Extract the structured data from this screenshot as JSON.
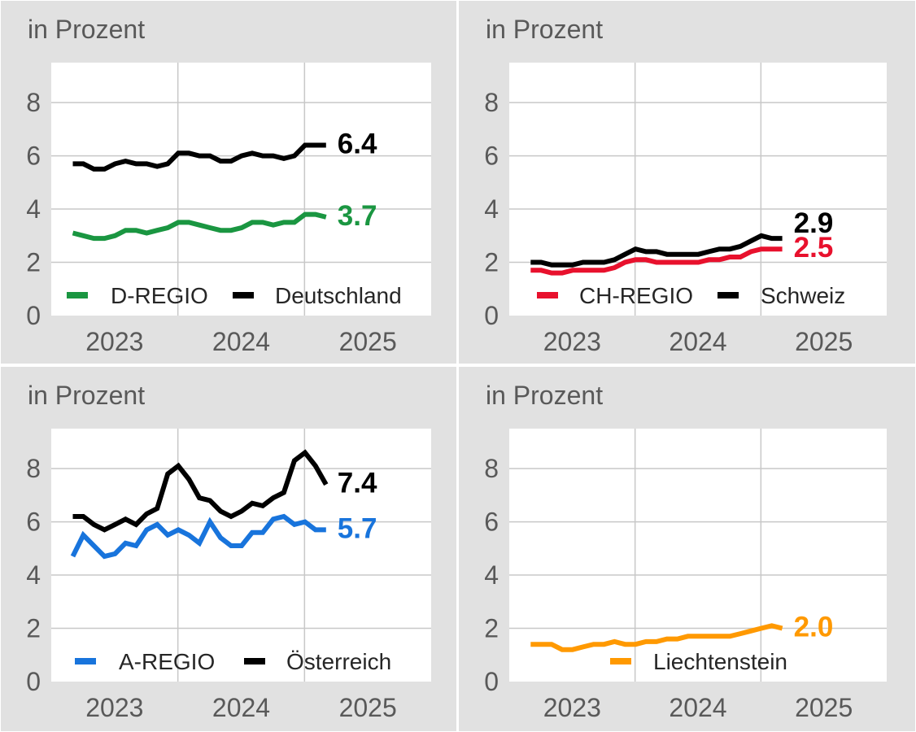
{
  "chart_data": [
    {
      "type": "line",
      "unit_label": "in Prozent",
      "ylim": [
        0,
        9.5
      ],
      "yticks": [
        "0",
        "2",
        "4",
        "6",
        "8"
      ],
      "xticks": [
        "2023",
        "2024",
        "2025"
      ],
      "grid": true,
      "legend_position": "bottom",
      "series": [
        {
          "name": "D-REGIO",
          "color": "#1a9641",
          "end_label": "3.7",
          "values": [
            3.1,
            3.0,
            2.9,
            2.9,
            3.0,
            3.2,
            3.2,
            3.1,
            3.2,
            3.3,
            3.5,
            3.5,
            3.4,
            3.3,
            3.2,
            3.2,
            3.3,
            3.5,
            3.5,
            3.4,
            3.5,
            3.5,
            3.8,
            3.8,
            3.7
          ]
        },
        {
          "name": "Deutschland",
          "color": "#000000",
          "end_label": "6.4",
          "values": [
            5.7,
            5.7,
            5.5,
            5.5,
            5.7,
            5.8,
            5.7,
            5.7,
            5.6,
            5.7,
            6.1,
            6.1,
            6.0,
            6.0,
            5.8,
            5.8,
            6.0,
            6.1,
            6.0,
            6.0,
            5.9,
            6.0,
            6.4,
            6.4,
            6.4
          ]
        }
      ]
    },
    {
      "type": "line",
      "unit_label": "in Prozent",
      "ylim": [
        0,
        9.5
      ],
      "yticks": [
        "0",
        "2",
        "4",
        "6",
        "8"
      ],
      "xticks": [
        "2023",
        "2024",
        "2025"
      ],
      "grid": true,
      "legend_position": "bottom",
      "series": [
        {
          "name": "CH-REGIO",
          "color": "#e8112d",
          "end_label": "2.5",
          "values": [
            1.7,
            1.7,
            1.6,
            1.6,
            1.7,
            1.7,
            1.7,
            1.7,
            1.8,
            2.0,
            2.1,
            2.1,
            2.0,
            2.0,
            2.0,
            2.0,
            2.0,
            2.1,
            2.1,
            2.2,
            2.2,
            2.4,
            2.5,
            2.5,
            2.5
          ]
        },
        {
          "name": "Schweiz",
          "color": "#000000",
          "end_label": "2.9",
          "values": [
            2.0,
            2.0,
            1.9,
            1.9,
            1.9,
            2.0,
            2.0,
            2.0,
            2.1,
            2.3,
            2.5,
            2.4,
            2.4,
            2.3,
            2.3,
            2.3,
            2.3,
            2.4,
            2.5,
            2.5,
            2.6,
            2.8,
            3.0,
            2.9,
            2.9
          ]
        }
      ]
    },
    {
      "type": "line",
      "unit_label": "in Prozent",
      "ylim": [
        0,
        9.5
      ],
      "yticks": [
        "0",
        "2",
        "4",
        "6",
        "8"
      ],
      "xticks": [
        "2023",
        "2024",
        "2025"
      ],
      "grid": true,
      "legend_position": "bottom",
      "series": [
        {
          "name": "A-REGIO",
          "color": "#1874dc",
          "end_label": "5.7",
          "values": [
            4.7,
            5.5,
            5.1,
            4.7,
            4.8,
            5.2,
            5.1,
            5.7,
            5.9,
            5.5,
            5.7,
            5.5,
            5.2,
            6.0,
            5.4,
            5.1,
            5.1,
            5.6,
            5.6,
            6.1,
            6.2,
            5.9,
            6.0,
            5.7,
            5.7
          ]
        },
        {
          "name": "Österreich",
          "color": "#000000",
          "end_label": "7.4",
          "values": [
            6.2,
            6.2,
            5.9,
            5.7,
            5.9,
            6.1,
            5.9,
            6.3,
            6.5,
            7.8,
            8.1,
            7.6,
            6.9,
            6.8,
            6.4,
            6.2,
            6.4,
            6.7,
            6.6,
            6.9,
            7.1,
            8.3,
            8.6,
            8.1,
            7.4
          ]
        }
      ]
    },
    {
      "type": "line",
      "unit_label": "in Prozent",
      "ylim": [
        0,
        9.5
      ],
      "yticks": [
        "0",
        "2",
        "4",
        "6",
        "8"
      ],
      "xticks": [
        "2023",
        "2024",
        "2025"
      ],
      "grid": true,
      "legend_position": "bottom",
      "series": [
        {
          "name": "Liechtenstein",
          "color": "#ff9900",
          "end_label": "2.0",
          "values": [
            1.4,
            1.4,
            1.4,
            1.2,
            1.2,
            1.3,
            1.4,
            1.4,
            1.5,
            1.4,
            1.4,
            1.5,
            1.5,
            1.6,
            1.6,
            1.7,
            1.7,
            1.7,
            1.7,
            1.7,
            1.8,
            1.9,
            2.0,
            2.1,
            2.0
          ]
        }
      ]
    }
  ]
}
